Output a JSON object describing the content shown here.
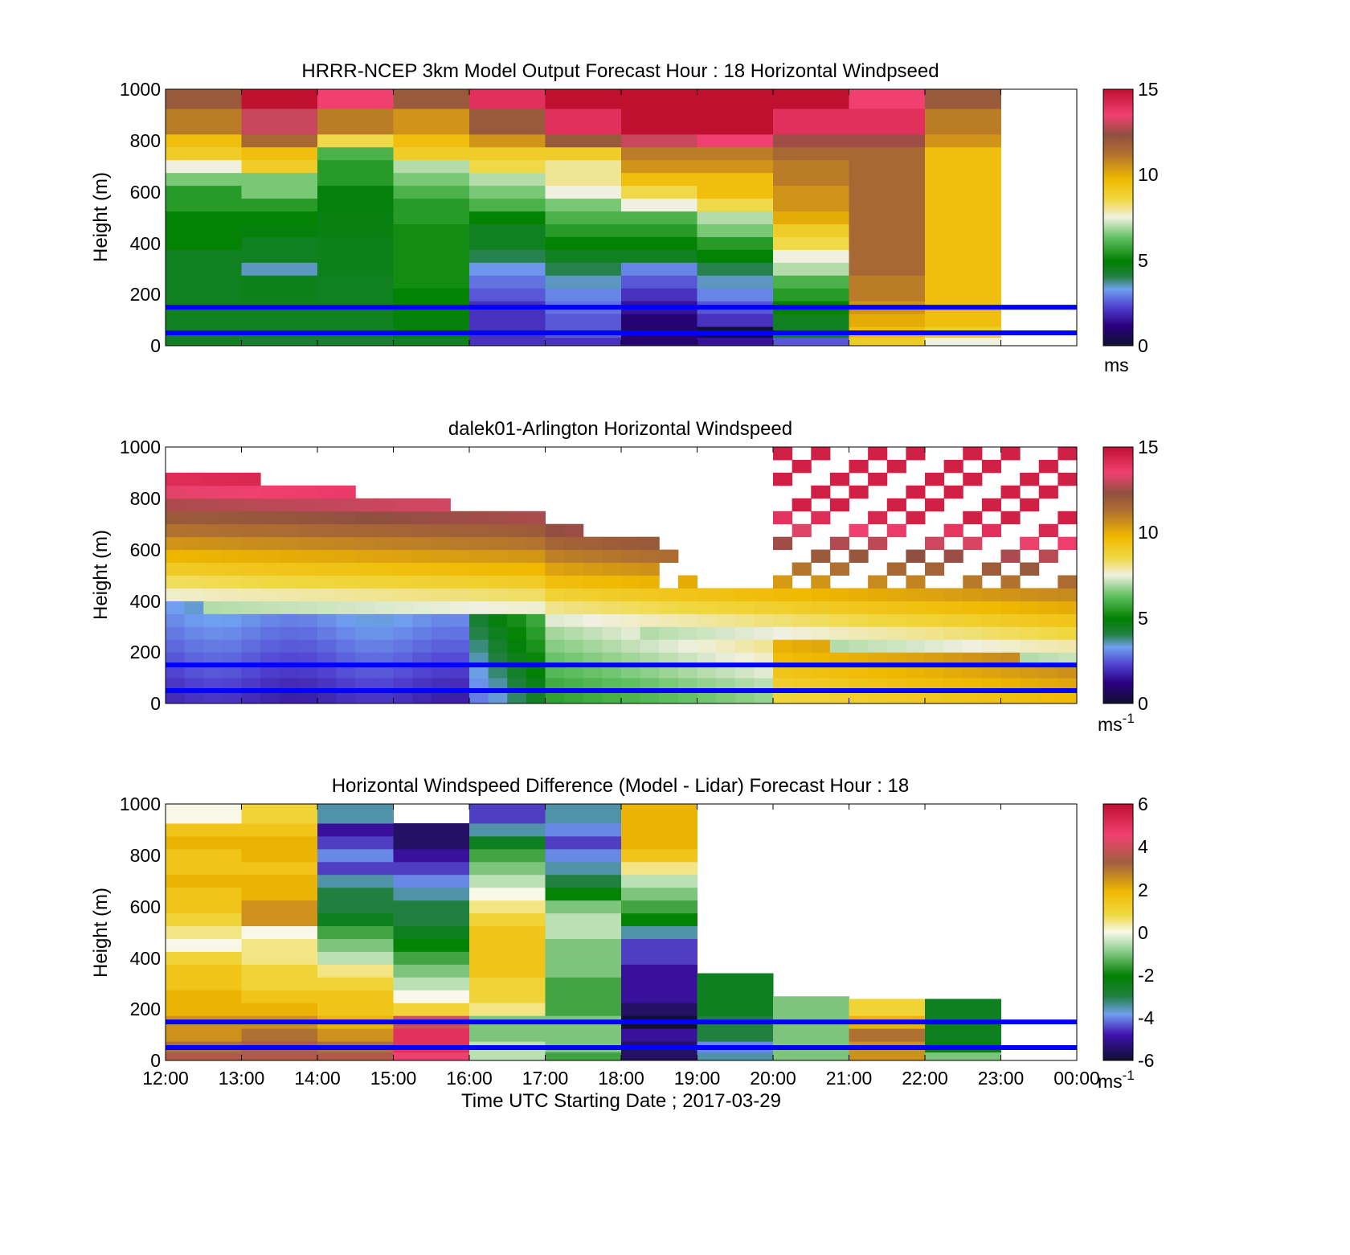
{
  "figure": {
    "xlabel": "Time UTC  Starting Date ; 2017-03-29",
    "x_ticks": [
      "12:00",
      "13:00",
      "14:00",
      "15:00",
      "16:00",
      "17:00",
      "18:00",
      "19:00",
      "20:00",
      "21:00",
      "22:00",
      "23:00",
      "00:00"
    ],
    "y_ticks": [
      "0",
      "200",
      "400",
      "600",
      "800",
      "1000"
    ],
    "reference_lines_m": [
      150,
      50
    ],
    "reference_line_color": "#0000ff"
  },
  "chart_data": [
    {
      "type": "heatmap",
      "title": "HRRR-NCEP 3km Model Output   Forecast Hour : 18 Horizontal Windpseed",
      "xlabel": "",
      "ylabel": "Height (m)",
      "ylim": [
        0,
        1000
      ],
      "colorbar": {
        "range": [
          0,
          15
        ],
        "ticks": [
          "0",
          "5",
          "10",
          "15"
        ],
        "unit": "ms",
        "unit_sup": ""
      },
      "x": [
        "12:00",
        "13:00",
        "14:00",
        "15:00",
        "16:00",
        "17:00",
        "18:00",
        "19:00",
        "20:00",
        "21:00",
        "22:00"
      ],
      "y": [
        15,
        50,
        100,
        150,
        200,
        250,
        300,
        350,
        400,
        450,
        500,
        550,
        600,
        650,
        700,
        750,
        800,
        850,
        900,
        950
      ],
      "z": [
        [
          4.5,
          4.5,
          4.5,
          4.5,
          4.5,
          4.5,
          4.5,
          4.5,
          5.0,
          5.0,
          5.0,
          5.5,
          5.5,
          6.5,
          7.5,
          9.0,
          9.5,
          11.0,
          11.0,
          12.0
        ],
        [
          4.3,
          4.5,
          4.5,
          4.5,
          4.6,
          4.6,
          3.5,
          4.5,
          4.5,
          4.8,
          5.0,
          5.5,
          6.5,
          6.5,
          9.0,
          9.5,
          11.5,
          13.0,
          13.0,
          15.0
        ],
        [
          4.3,
          4.5,
          4.5,
          4.5,
          4.5,
          4.5,
          4.6,
          4.6,
          4.6,
          4.7,
          4.7,
          4.8,
          4.8,
          5.5,
          5.5,
          6.0,
          8.5,
          11.0,
          11.0,
          13.5
        ],
        [
          4.5,
          4.8,
          4.8,
          5.0,
          5.0,
          5.2,
          5.2,
          5.2,
          5.2,
          5.2,
          5.5,
          5.5,
          6.0,
          6.5,
          7.0,
          9.0,
          9.5,
          10.5,
          10.5,
          12.0
        ],
        [
          2.0,
          2.0,
          2.0,
          2.0,
          2.5,
          2.8,
          3.2,
          4.0,
          4.5,
          4.5,
          5.0,
          6.0,
          6.5,
          7.0,
          8.5,
          9.0,
          10.5,
          12.0,
          12.0,
          14.0
        ],
        [
          2.0,
          2.5,
          2.5,
          2.8,
          3.0,
          3.5,
          4.0,
          4.5,
          5.0,
          5.5,
          6.0,
          6.5,
          7.5,
          8.0,
          8.0,
          9.0,
          12.0,
          14.0,
          14.0,
          15.0
        ],
        [
          1.0,
          1.0,
          1.0,
          1.5,
          2.0,
          2.5,
          3.0,
          4.5,
          5.0,
          5.5,
          6.0,
          7.5,
          8.5,
          9.5,
          10.5,
          11.0,
          13.0,
          15.0,
          15.0,
          15.0
        ],
        [
          1.5,
          0.2,
          2.0,
          2.5,
          3.0,
          3.5,
          4.0,
          5.0,
          5.5,
          6.5,
          7.0,
          8.5,
          9.5,
          9.5,
          10.5,
          11.0,
          13.5,
          15.0,
          15.0,
          15.0
        ],
        [
          2.5,
          4.5,
          4.5,
          5.0,
          5.5,
          6.0,
          7.0,
          7.5,
          8.5,
          9.0,
          10.0,
          10.5,
          10.5,
          11.0,
          11.0,
          11.5,
          12.5,
          14.0,
          14.0,
          15.0
        ],
        [
          9.0,
          9.5,
          10.0,
          10.5,
          11.0,
          11.0,
          11.5,
          11.5,
          11.5,
          11.5,
          11.5,
          11.5,
          11.5,
          11.5,
          11.5,
          11.5,
          12.5,
          14.0,
          14.0,
          13.5
        ],
        [
          7.5,
          9.0,
          9.5,
          9.5,
          9.5,
          9.5,
          9.5,
          9.5,
          9.5,
          9.5,
          9.5,
          9.5,
          9.5,
          9.5,
          9.5,
          9.5,
          10.5,
          11.0,
          11.0,
          12.0
        ]
      ]
    },
    {
      "type": "heatmap",
      "title": "dalek01-Arlington  Horizontal Windspeed",
      "xlabel": "",
      "ylabel": "Height (m)",
      "ylim": [
        0,
        1000
      ],
      "colorbar": {
        "range": [
          0,
          15
        ],
        "ticks": [
          "0",
          "5",
          "10",
          "15"
        ],
        "unit": "ms",
        "unit_sup": "-1"
      },
      "x_range_hours": [
        12.0,
        24.0
      ],
      "time_bins_per_hour": 4,
      "y_bins_m": 50,
      "summary": "Low-level jet evolution: speeds 1-3 m/s below 400 m from 12:00-16:00, increasing to 5-7 m/s (green) between 17:00 and 20:00, then 8-10 m/s near the surface after 20:00; 10-15 m/s above 600 m with sparse returns aloft after 18:30."
    },
    {
      "type": "heatmap",
      "title": "Horizontal Windspeed Difference (Model - Lidar) Forecast Hour : 18",
      "xlabel": "Time UTC  Starting Date ; 2017-03-29",
      "ylabel": "Height (m)",
      "ylim": [
        0,
        1000
      ],
      "colorbar": {
        "range": [
          -6,
          6
        ],
        "ticks": [
          "-6",
          "-4",
          "-2",
          "0",
          "2",
          "4",
          "6"
        ],
        "unit": "ms",
        "unit_sup": "-1"
      },
      "x": [
        "12:00",
        "13:00",
        "14:00",
        "15:00",
        "16:00",
        "17:00",
        "18:00",
        "19:00",
        "20:00",
        "21:00",
        "22:00"
      ],
      "column_top_m": [
        1000,
        1000,
        1000,
        900,
        1000,
        1000,
        1000,
        340,
        250,
        240,
        240
      ],
      "y": [
        15,
        50,
        100,
        150,
        200,
        250,
        300,
        350,
        400,
        450,
        500,
        550,
        600,
        650,
        700,
        750,
        800,
        850,
        900,
        950
      ],
      "z": [
        [
          3.5,
          3.0,
          2.5,
          2.5,
          2.0,
          2.0,
          1.5,
          1.5,
          1.0,
          0.0,
          0.5,
          1.0,
          1.5,
          1.5,
          2.0,
          1.5,
          1.5,
          2.0,
          1.5,
          0.0
        ],
        [
          3.5,
          3.5,
          3.0,
          2.5,
          2.0,
          1.5,
          1.0,
          1.0,
          0.5,
          0.5,
          0.0,
          2.5,
          2.5,
          2.0,
          2.0,
          1.5,
          2.0,
          2.0,
          1.5,
          1.0
        ],
        [
          3.5,
          3.0,
          2.5,
          2.0,
          1.5,
          1.5,
          1.0,
          0.5,
          -0.5,
          -1.0,
          -1.5,
          -2.5,
          -3.0,
          -3.0,
          -3.5,
          -4.5,
          -4.0,
          -4.5,
          -5.0,
          -3.5
        ],
        [
          4.5,
          5.0,
          5.0,
          4.0,
          1.0,
          0.0,
          -0.5,
          -1.0,
          -1.5,
          -2.0,
          -2.5,
          -3.0,
          -3.0,
          -3.5,
          -4.0,
          -4.5,
          -5.0,
          -5.5,
          -5.5,
          -6.0
        ],
        [
          -0.5,
          -0.5,
          -1.0,
          -1.0,
          0.5,
          1.0,
          1.0,
          1.5,
          1.5,
          1.5,
          1.5,
          1.0,
          0.5,
          0.0,
          -0.5,
          -1.0,
          -1.5,
          -2.5,
          -3.5,
          -4.5
        ],
        [
          -1.5,
          -1.0,
          -1.0,
          -1.0,
          -1.5,
          -1.5,
          -1.5,
          -1.0,
          -1.0,
          -1.0,
          -0.5,
          -0.5,
          -1.0,
          -2.0,
          -3.0,
          -3.5,
          -4.0,
          -4.5,
          -4.0,
          -3.5
        ],
        [
          -5.5,
          -5.5,
          -5.0,
          -6.0,
          -5.5,
          -5.0,
          -5.0,
          -5.0,
          -4.5,
          -4.5,
          -3.5,
          -2.0,
          -1.5,
          -1.0,
          -0.5,
          0.5,
          1.5,
          2.0,
          2.0,
          2.0
        ],
        [
          -3.5,
          -4.0,
          -3.0,
          -3.0,
          -2.5,
          -2.5,
          -2.5
        ],
        [
          -1.0,
          -1.0,
          -1.0,
          -1.0,
          -1.0
        ],
        [
          2.5,
          2.5,
          3.0,
          2.0,
          1.0
        ],
        [
          -1.0,
          -2.0,
          -2.5,
          -2.5,
          -2.5
        ]
      ]
    }
  ]
}
